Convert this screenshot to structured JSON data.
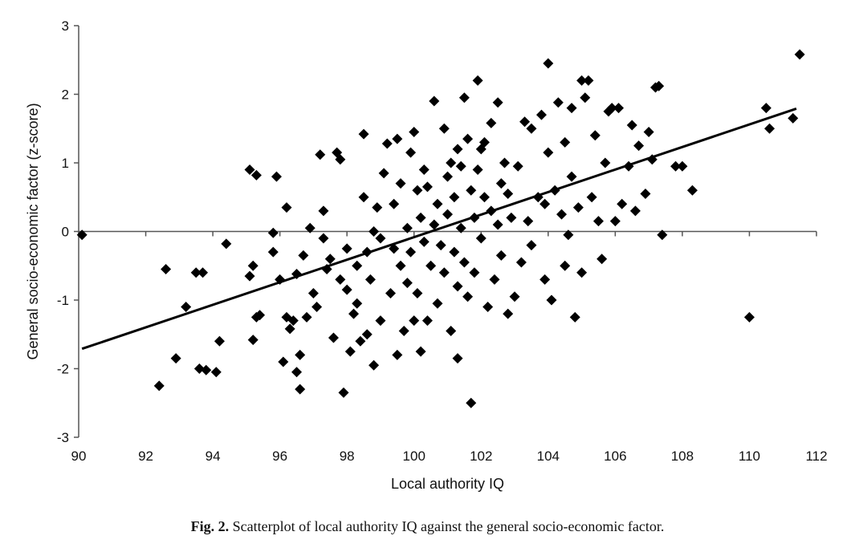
{
  "chart_data": {
    "type": "scatter",
    "xlabel": "Local authority IQ",
    "ylabel": "General socio-economic factor (z-score)",
    "xlim": [
      90,
      112
    ],
    "ylim": [
      -3,
      3
    ],
    "xticks": [
      90,
      92,
      94,
      96,
      98,
      100,
      102,
      104,
      106,
      108,
      110,
      112
    ],
    "yticks": [
      3,
      2,
      1,
      0,
      -1,
      -2,
      -3
    ],
    "trendline": {
      "x": [
        90.1,
        111.4
      ],
      "y": [
        -1.71,
        1.79
      ]
    },
    "points": [
      [
        90.1,
        -0.05
      ],
      [
        92.4,
        -2.25
      ],
      [
        92.6,
        -0.55
      ],
      [
        92.9,
        -1.85
      ],
      [
        93.2,
        -1.1
      ],
      [
        93.5,
        -0.6
      ],
      [
        93.6,
        -2.0
      ],
      [
        93.7,
        -0.6
      ],
      [
        93.8,
        -2.02
      ],
      [
        94.1,
        -2.05
      ],
      [
        94.2,
        -1.6
      ],
      [
        94.4,
        -0.18
      ],
      [
        95.1,
        0.9
      ],
      [
        95.2,
        -1.58
      ],
      [
        95.1,
        -0.65
      ],
      [
        95.2,
        -0.5
      ],
      [
        95.3,
        -1.25
      ],
      [
        95.3,
        0.82
      ],
      [
        95.4,
        -1.22
      ],
      [
        95.8,
        -0.02
      ],
      [
        95.9,
        0.8
      ],
      [
        95.8,
        -0.3
      ],
      [
        96.0,
        -0.7
      ],
      [
        96.1,
        -1.9
      ],
      [
        96.2,
        -1.25
      ],
      [
        96.2,
        0.35
      ],
      [
        96.3,
        -1.42
      ],
      [
        96.4,
        -1.3
      ],
      [
        96.5,
        -0.62
      ],
      [
        96.6,
        -2.3
      ],
      [
        96.6,
        -1.8
      ],
      [
        96.5,
        -2.05
      ],
      [
        96.7,
        -0.35
      ],
      [
        96.8,
        -1.25
      ],
      [
        96.9,
        0.05
      ],
      [
        97.0,
        -0.9
      ],
      [
        97.1,
        -1.1
      ],
      [
        97.2,
        1.12
      ],
      [
        97.3,
        -0.1
      ],
      [
        97.3,
        0.3
      ],
      [
        97.4,
        -0.55
      ],
      [
        97.5,
        -0.4
      ],
      [
        97.6,
        -1.55
      ],
      [
        97.7,
        1.15
      ],
      [
        97.8,
        1.05
      ],
      [
        97.8,
        -0.7
      ],
      [
        97.9,
        -2.35
      ],
      [
        98.0,
        -0.25
      ],
      [
        98.0,
        -0.85
      ],
      [
        98.1,
        -1.75
      ],
      [
        98.2,
        -1.2
      ],
      [
        98.3,
        -0.5
      ],
      [
        98.3,
        -1.05
      ],
      [
        98.4,
        -1.6
      ],
      [
        98.5,
        1.42
      ],
      [
        98.5,
        0.5
      ],
      [
        98.6,
        -0.3
      ],
      [
        98.6,
        -1.5
      ],
      [
        98.7,
        -0.7
      ],
      [
        98.8,
        -1.95
      ],
      [
        98.8,
        0.0
      ],
      [
        98.9,
        0.35
      ],
      [
        99.0,
        -1.3
      ],
      [
        99.0,
        -0.1
      ],
      [
        99.1,
        0.85
      ],
      [
        99.2,
        1.28
      ],
      [
        99.3,
        -0.9
      ],
      [
        99.4,
        0.4
      ],
      [
        99.4,
        -0.25
      ],
      [
        99.5,
        1.35
      ],
      [
        99.5,
        -1.8
      ],
      [
        99.6,
        -0.5
      ],
      [
        99.6,
        0.7
      ],
      [
        99.7,
        -1.45
      ],
      [
        99.8,
        0.05
      ],
      [
        99.8,
        -0.75
      ],
      [
        99.9,
        1.15
      ],
      [
        99.9,
        -0.3
      ],
      [
        100.0,
        1.45
      ],
      [
        100.0,
        -1.3
      ],
      [
        100.1,
        0.6
      ],
      [
        100.1,
        -0.9
      ],
      [
        100.2,
        0.2
      ],
      [
        100.2,
        -1.75
      ],
      [
        100.3,
        0.9
      ],
      [
        100.3,
        -0.15
      ],
      [
        100.4,
        0.65
      ],
      [
        100.4,
        -1.3
      ],
      [
        100.5,
        -0.5
      ],
      [
        100.6,
        1.9
      ],
      [
        100.6,
        0.1
      ],
      [
        100.7,
        -1.05
      ],
      [
        100.7,
        0.4
      ],
      [
        100.8,
        -0.2
      ],
      [
        100.9,
        1.5
      ],
      [
        100.9,
        -0.6
      ],
      [
        101.0,
        0.8
      ],
      [
        101.0,
        0.25
      ],
      [
        101.1,
        -1.45
      ],
      [
        101.1,
        1.0
      ],
      [
        101.2,
        -0.3
      ],
      [
        101.2,
        0.5
      ],
      [
        101.3,
        1.2
      ],
      [
        101.3,
        -0.8
      ],
      [
        101.3,
        -1.85
      ],
      [
        101.4,
        0.05
      ],
      [
        101.4,
        0.95
      ],
      [
        101.5,
        1.95
      ],
      [
        101.5,
        -0.45
      ],
      [
        101.6,
        1.35
      ],
      [
        101.6,
        -0.95
      ],
      [
        101.7,
        -2.5
      ],
      [
        101.7,
        0.6
      ],
      [
        101.8,
        0.2
      ],
      [
        101.8,
        -0.6
      ],
      [
        101.9,
        2.2
      ],
      [
        101.9,
        0.9
      ],
      [
        102.0,
        1.2
      ],
      [
        102.0,
        -0.1
      ],
      [
        102.1,
        1.3
      ],
      [
        102.1,
        0.5
      ],
      [
        102.2,
        -1.1
      ],
      [
        102.3,
        1.58
      ],
      [
        102.3,
        0.3
      ],
      [
        102.4,
        -0.7
      ],
      [
        102.5,
        1.88
      ],
      [
        102.5,
        0.1
      ],
      [
        102.6,
        0.7
      ],
      [
        102.6,
        -0.35
      ],
      [
        102.7,
        1.0
      ],
      [
        102.8,
        -1.2
      ],
      [
        102.8,
        0.55
      ],
      [
        102.9,
        0.2
      ],
      [
        103.0,
        -0.95
      ],
      [
        103.1,
        0.95
      ],
      [
        103.2,
        -0.45
      ],
      [
        103.3,
        1.6
      ],
      [
        103.4,
        0.15
      ],
      [
        103.5,
        1.5
      ],
      [
        103.5,
        -0.2
      ],
      [
        103.7,
        0.5
      ],
      [
        103.8,
        1.7
      ],
      [
        103.9,
        0.4
      ],
      [
        103.9,
        -0.7
      ],
      [
        104.0,
        2.45
      ],
      [
        104.0,
        1.15
      ],
      [
        104.1,
        -1.0
      ],
      [
        104.2,
        0.6
      ],
      [
        104.3,
        1.88
      ],
      [
        104.4,
        0.25
      ],
      [
        104.5,
        -0.5
      ],
      [
        104.5,
        1.3
      ],
      [
        104.6,
        -0.05
      ],
      [
        104.7,
        1.8
      ],
      [
        104.7,
        0.8
      ],
      [
        104.8,
        -1.25
      ],
      [
        104.9,
        0.35
      ],
      [
        105.0,
        2.2
      ],
      [
        105.0,
        -0.6
      ],
      [
        105.1,
        1.95
      ],
      [
        105.2,
        2.2
      ],
      [
        105.3,
        0.5
      ],
      [
        105.4,
        1.4
      ],
      [
        105.5,
        0.15
      ],
      [
        105.6,
        -0.4
      ],
      [
        105.7,
        1.0
      ],
      [
        105.8,
        1.75
      ],
      [
        105.9,
        1.8
      ],
      [
        106.0,
        0.15
      ],
      [
        106.1,
        1.8
      ],
      [
        106.2,
        0.4
      ],
      [
        106.4,
        0.95
      ],
      [
        106.5,
        1.55
      ],
      [
        106.6,
        0.3
      ],
      [
        106.7,
        1.25
      ],
      [
        106.9,
        0.55
      ],
      [
        107.0,
        1.45
      ],
      [
        107.1,
        1.05
      ],
      [
        107.2,
        2.1
      ],
      [
        107.3,
        2.12
      ],
      [
        107.4,
        -0.05
      ],
      [
        107.8,
        0.95
      ],
      [
        108.0,
        0.95
      ],
      [
        108.3,
        0.6
      ],
      [
        110.0,
        -1.25
      ],
      [
        110.5,
        1.8
      ],
      [
        110.6,
        1.5
      ],
      [
        111.3,
        1.65
      ],
      [
        111.5,
        2.58
      ]
    ]
  },
  "caption": {
    "label": "Fig. 2.",
    "text": "Scatterplot of local authority IQ against the general socio-economic factor."
  }
}
